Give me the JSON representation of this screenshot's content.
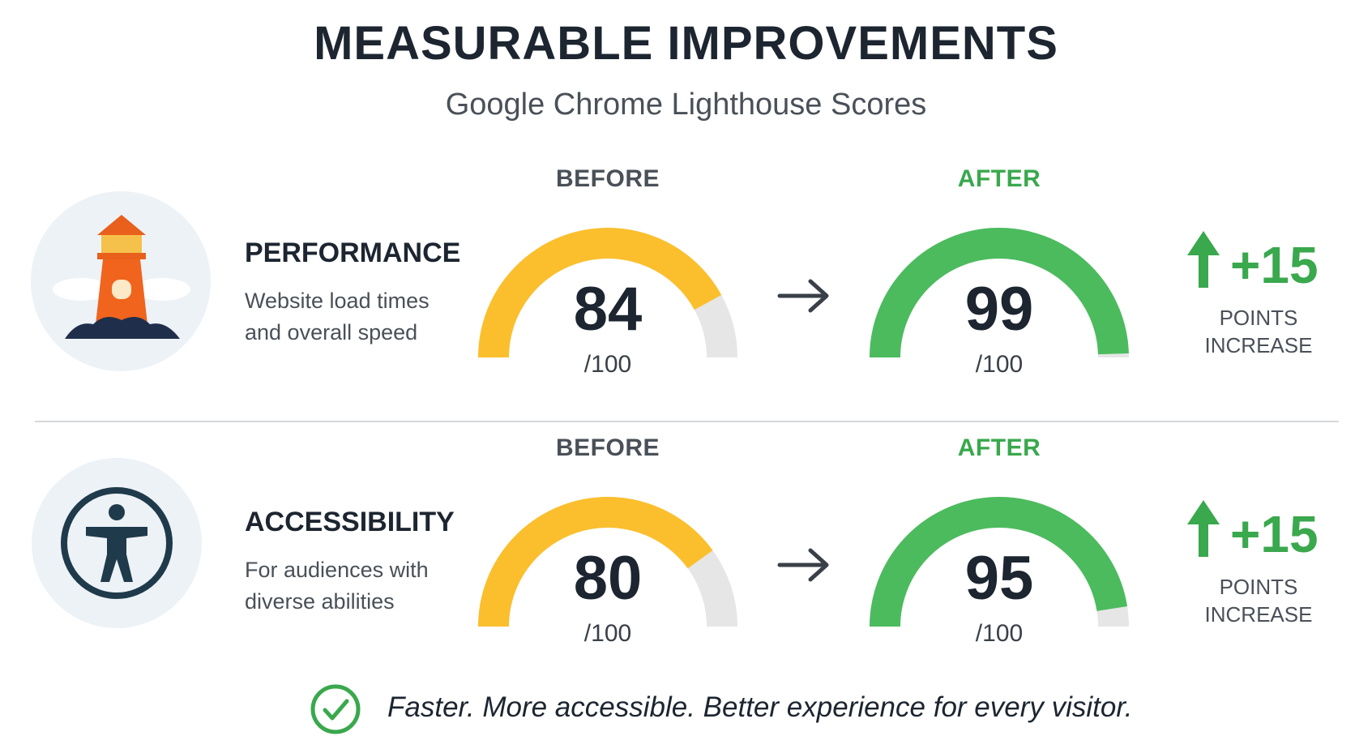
{
  "header": {
    "title": "MEASURABLE IMPROVEMENTS",
    "subtitle": "Google Chrome Lighthouse Scores"
  },
  "rows": [
    {
      "name": "PERFORMANCE",
      "description": "Website load times and overall speed",
      "before": {
        "label": "BEFORE",
        "score": 84,
        "out_of": {
          "value": 100,
          "label": "/100"
        }
      },
      "after": {
        "label": "AFTER",
        "score": 99,
        "out_of": {
          "value": 100,
          "label": "/100"
        }
      },
      "change": {
        "value": 15,
        "label": "+15"
      },
      "change_caption": "POINTS INCREASE"
    },
    {
      "name": "ACCESSIBILITY",
      "description": "For audiences with diverse abilities",
      "before": {
        "label": "BEFORE",
        "score": 80,
        "out_of": {
          "value": 100,
          "label": "/100"
        }
      },
      "after": {
        "label": "AFTER",
        "score": 95,
        "out_of": {
          "value": 100,
          "label": "/100"
        }
      },
      "change": {
        "value": 15,
        "label": "+15"
      },
      "change_caption": "POINTS INCREASE"
    }
  ],
  "footer": "Faster. More accessible. Better experience for every visitor."
}
